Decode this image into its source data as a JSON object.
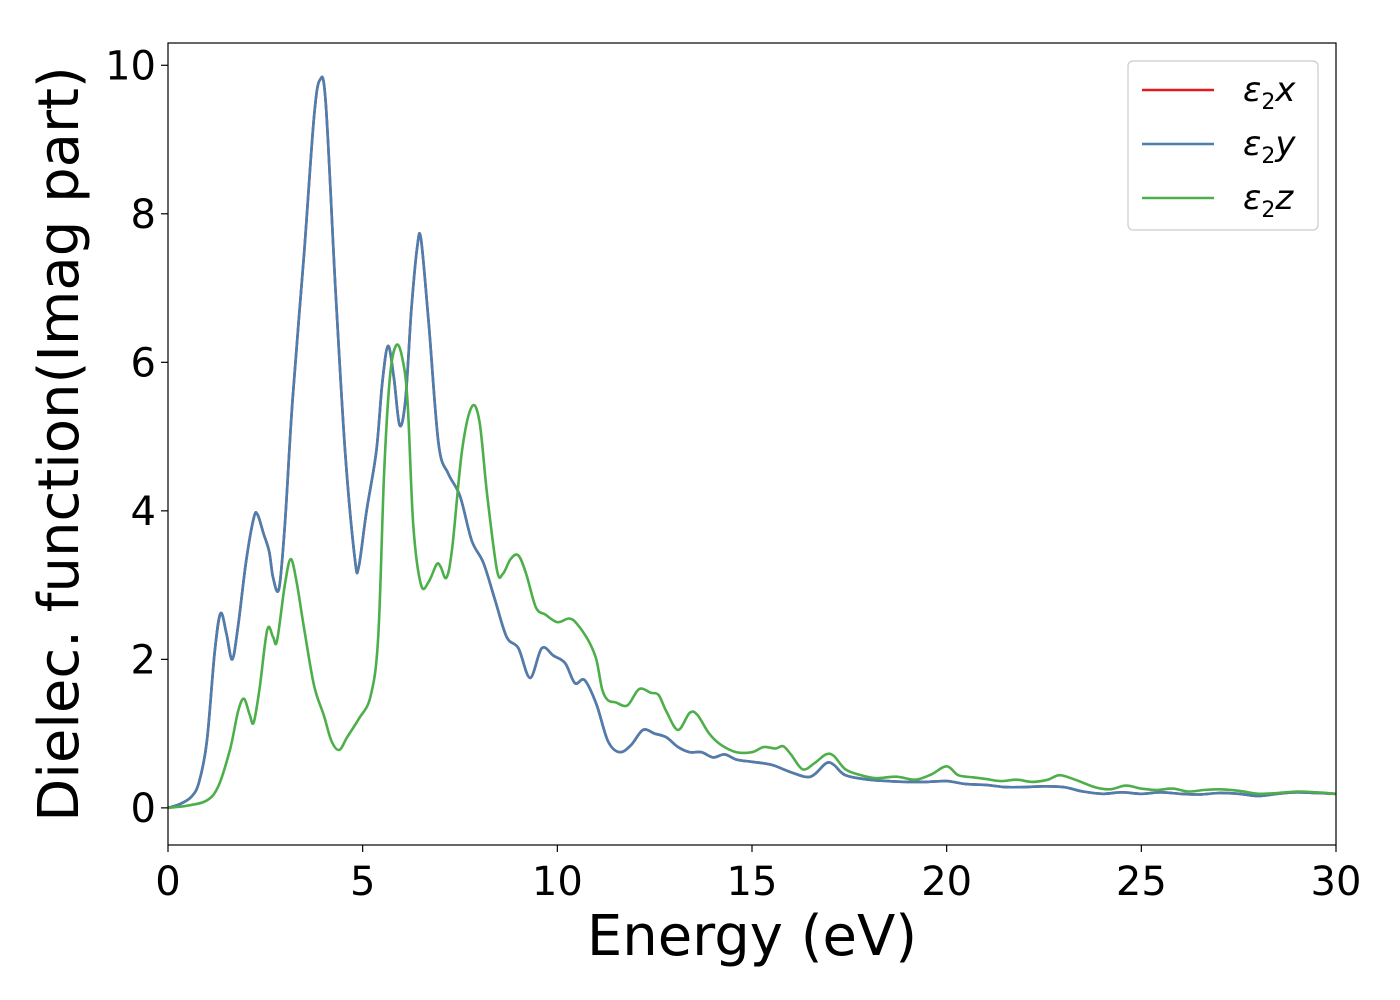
{
  "chart_data": {
    "type": "line",
    "title": "",
    "xlabel": "Energy (eV)",
    "ylabel": "Dielec. function(Imag part)",
    "xlim": [
      0,
      30
    ],
    "ylim": [
      -0.5,
      10.3
    ],
    "xticks": [
      0,
      5,
      10,
      15,
      20,
      25,
      30
    ],
    "yticks": [
      0,
      2,
      4,
      6,
      8,
      10
    ],
    "grid": false,
    "legend_position": "top-right",
    "series": [
      {
        "name": "ε2x",
        "legend_base": "ε",
        "legend_sub": "2",
        "legend_var": "x",
        "color": "#e41a1c",
        "points": [
          [
            0,
            0.0
          ],
          [
            0.3,
            0.05
          ],
          [
            0.6,
            0.15
          ],
          [
            0.8,
            0.35
          ],
          [
            1.0,
            0.9
          ],
          [
            1.2,
            2.1
          ],
          [
            1.35,
            2.62
          ],
          [
            1.5,
            2.35
          ],
          [
            1.65,
            2.0
          ],
          [
            1.8,
            2.45
          ],
          [
            2.0,
            3.3
          ],
          [
            2.2,
            3.9
          ],
          [
            2.3,
            3.95
          ],
          [
            2.45,
            3.7
          ],
          [
            2.6,
            3.45
          ],
          [
            2.7,
            3.1
          ],
          [
            2.85,
            2.95
          ],
          [
            3.0,
            3.8
          ],
          [
            3.2,
            5.5
          ],
          [
            3.5,
            7.5
          ],
          [
            3.75,
            9.3
          ],
          [
            3.9,
            9.8
          ],
          [
            4.05,
            9.5
          ],
          [
            4.3,
            7.0
          ],
          [
            4.55,
            4.8
          ],
          [
            4.8,
            3.35
          ],
          [
            4.9,
            3.25
          ],
          [
            5.1,
            4.0
          ],
          [
            5.35,
            4.8
          ],
          [
            5.5,
            5.7
          ],
          [
            5.65,
            6.22
          ],
          [
            5.8,
            5.8
          ],
          [
            5.95,
            5.15
          ],
          [
            6.1,
            5.5
          ],
          [
            6.25,
            6.7
          ],
          [
            6.4,
            7.55
          ],
          [
            6.5,
            7.65
          ],
          [
            6.7,
            6.5
          ],
          [
            6.95,
            4.9
          ],
          [
            7.2,
            4.5
          ],
          [
            7.5,
            4.2
          ],
          [
            7.8,
            3.6
          ],
          [
            8.1,
            3.3
          ],
          [
            8.4,
            2.8
          ],
          [
            8.7,
            2.3
          ],
          [
            9.0,
            2.15
          ],
          [
            9.3,
            1.75
          ],
          [
            9.6,
            2.15
          ],
          [
            9.9,
            2.05
          ],
          [
            10.2,
            1.95
          ],
          [
            10.45,
            1.68
          ],
          [
            10.7,
            1.72
          ],
          [
            11.0,
            1.4
          ],
          [
            11.3,
            0.9
          ],
          [
            11.6,
            0.75
          ],
          [
            11.9,
            0.85
          ],
          [
            12.2,
            1.05
          ],
          [
            12.5,
            1.0
          ],
          [
            12.8,
            0.95
          ],
          [
            13.1,
            0.82
          ],
          [
            13.4,
            0.75
          ],
          [
            13.7,
            0.75
          ],
          [
            14.0,
            0.68
          ],
          [
            14.3,
            0.72
          ],
          [
            14.6,
            0.65
          ],
          [
            15.0,
            0.62
          ],
          [
            15.5,
            0.58
          ],
          [
            16.0,
            0.48
          ],
          [
            16.5,
            0.42
          ],
          [
            16.9,
            0.6
          ],
          [
            17.1,
            0.58
          ],
          [
            17.4,
            0.44
          ],
          [
            18.0,
            0.38
          ],
          [
            18.5,
            0.36
          ],
          [
            19.0,
            0.35
          ],
          [
            19.5,
            0.35
          ],
          [
            20.0,
            0.36
          ],
          [
            20.5,
            0.32
          ],
          [
            21.0,
            0.31
          ],
          [
            21.5,
            0.28
          ],
          [
            22.0,
            0.28
          ],
          [
            22.5,
            0.29
          ],
          [
            23.0,
            0.28
          ],
          [
            23.5,
            0.22
          ],
          [
            24.0,
            0.19
          ],
          [
            24.5,
            0.21
          ],
          [
            25.0,
            0.19
          ],
          [
            25.5,
            0.21
          ],
          [
            26.0,
            0.19
          ],
          [
            26.5,
            0.18
          ],
          [
            27.0,
            0.2
          ],
          [
            27.5,
            0.19
          ],
          [
            28.0,
            0.16
          ],
          [
            28.5,
            0.19
          ],
          [
            29.0,
            0.21
          ],
          [
            29.5,
            0.2
          ],
          [
            30.0,
            0.19
          ]
        ]
      },
      {
        "name": "ε2y",
        "legend_base": "ε",
        "legend_sub": "2",
        "legend_var": "y",
        "color": "#4a7fb0",
        "points": [
          [
            0,
            0.0
          ],
          [
            0.3,
            0.05
          ],
          [
            0.6,
            0.15
          ],
          [
            0.8,
            0.35
          ],
          [
            1.0,
            0.9
          ],
          [
            1.2,
            2.1
          ],
          [
            1.35,
            2.62
          ],
          [
            1.5,
            2.35
          ],
          [
            1.65,
            2.0
          ],
          [
            1.8,
            2.45
          ],
          [
            2.0,
            3.3
          ],
          [
            2.2,
            3.9
          ],
          [
            2.3,
            3.95
          ],
          [
            2.45,
            3.7
          ],
          [
            2.6,
            3.45
          ],
          [
            2.7,
            3.1
          ],
          [
            2.85,
            2.95
          ],
          [
            3.0,
            3.8
          ],
          [
            3.2,
            5.5
          ],
          [
            3.5,
            7.5
          ],
          [
            3.75,
            9.3
          ],
          [
            3.9,
            9.8
          ],
          [
            4.05,
            9.5
          ],
          [
            4.3,
            7.0
          ],
          [
            4.55,
            4.8
          ],
          [
            4.8,
            3.35
          ],
          [
            4.9,
            3.25
          ],
          [
            5.1,
            4.0
          ],
          [
            5.35,
            4.8
          ],
          [
            5.5,
            5.7
          ],
          [
            5.65,
            6.22
          ],
          [
            5.8,
            5.8
          ],
          [
            5.95,
            5.15
          ],
          [
            6.1,
            5.5
          ],
          [
            6.25,
            6.7
          ],
          [
            6.4,
            7.55
          ],
          [
            6.5,
            7.65
          ],
          [
            6.7,
            6.5
          ],
          [
            6.95,
            4.9
          ],
          [
            7.2,
            4.5
          ],
          [
            7.5,
            4.2
          ],
          [
            7.8,
            3.6
          ],
          [
            8.1,
            3.3
          ],
          [
            8.4,
            2.8
          ],
          [
            8.7,
            2.3
          ],
          [
            9.0,
            2.15
          ],
          [
            9.3,
            1.75
          ],
          [
            9.6,
            2.15
          ],
          [
            9.9,
            2.05
          ],
          [
            10.2,
            1.95
          ],
          [
            10.45,
            1.68
          ],
          [
            10.7,
            1.72
          ],
          [
            11.0,
            1.4
          ],
          [
            11.3,
            0.9
          ],
          [
            11.6,
            0.75
          ],
          [
            11.9,
            0.85
          ],
          [
            12.2,
            1.05
          ],
          [
            12.5,
            1.0
          ],
          [
            12.8,
            0.95
          ],
          [
            13.1,
            0.82
          ],
          [
            13.4,
            0.75
          ],
          [
            13.7,
            0.75
          ],
          [
            14.0,
            0.68
          ],
          [
            14.3,
            0.72
          ],
          [
            14.6,
            0.65
          ],
          [
            15.0,
            0.62
          ],
          [
            15.5,
            0.58
          ],
          [
            16.0,
            0.48
          ],
          [
            16.5,
            0.42
          ],
          [
            16.9,
            0.6
          ],
          [
            17.1,
            0.58
          ],
          [
            17.4,
            0.44
          ],
          [
            18.0,
            0.38
          ],
          [
            18.5,
            0.36
          ],
          [
            19.0,
            0.35
          ],
          [
            19.5,
            0.35
          ],
          [
            20.0,
            0.36
          ],
          [
            20.5,
            0.32
          ],
          [
            21.0,
            0.31
          ],
          [
            21.5,
            0.28
          ],
          [
            22.0,
            0.28
          ],
          [
            22.5,
            0.29
          ],
          [
            23.0,
            0.28
          ],
          [
            23.5,
            0.22
          ],
          [
            24.0,
            0.19
          ],
          [
            24.5,
            0.21
          ],
          [
            25.0,
            0.19
          ],
          [
            25.5,
            0.21
          ],
          [
            26.0,
            0.19
          ],
          [
            26.5,
            0.18
          ],
          [
            27.0,
            0.2
          ],
          [
            27.5,
            0.19
          ],
          [
            28.0,
            0.16
          ],
          [
            28.5,
            0.19
          ],
          [
            29.0,
            0.21
          ],
          [
            29.5,
            0.2
          ],
          [
            30.0,
            0.19
          ]
        ]
      },
      {
        "name": "ε2z",
        "legend_base": "ε",
        "legend_sub": "2",
        "legend_var": "z",
        "color": "#4daf4a",
        "points": [
          [
            0,
            0.0
          ],
          [
            0.5,
            0.03
          ],
          [
            1.0,
            0.1
          ],
          [
            1.3,
            0.3
          ],
          [
            1.6,
            0.8
          ],
          [
            1.8,
            1.3
          ],
          [
            1.95,
            1.47
          ],
          [
            2.1,
            1.25
          ],
          [
            2.2,
            1.15
          ],
          [
            2.35,
            1.6
          ],
          [
            2.55,
            2.4
          ],
          [
            2.7,
            2.3
          ],
          [
            2.8,
            2.25
          ],
          [
            3.0,
            3.0
          ],
          [
            3.15,
            3.35
          ],
          [
            3.3,
            3.05
          ],
          [
            3.5,
            2.4
          ],
          [
            3.75,
            1.65
          ],
          [
            4.0,
            1.25
          ],
          [
            4.2,
            0.9
          ],
          [
            4.4,
            0.78
          ],
          [
            4.6,
            0.95
          ],
          [
            4.9,
            1.2
          ],
          [
            5.2,
            1.5
          ],
          [
            5.4,
            2.3
          ],
          [
            5.55,
            4.5
          ],
          [
            5.7,
            5.8
          ],
          [
            5.85,
            6.22
          ],
          [
            6.0,
            6.1
          ],
          [
            6.15,
            5.5
          ],
          [
            6.3,
            3.8
          ],
          [
            6.5,
            3.0
          ],
          [
            6.7,
            3.05
          ],
          [
            6.9,
            3.28
          ],
          [
            7.0,
            3.25
          ],
          [
            7.15,
            3.1
          ],
          [
            7.3,
            3.5
          ],
          [
            7.55,
            4.8
          ],
          [
            7.8,
            5.4
          ],
          [
            8.0,
            5.2
          ],
          [
            8.2,
            4.2
          ],
          [
            8.45,
            3.2
          ],
          [
            8.6,
            3.15
          ],
          [
            8.8,
            3.35
          ],
          [
            9.0,
            3.4
          ],
          [
            9.2,
            3.15
          ],
          [
            9.45,
            2.7
          ],
          [
            9.7,
            2.6
          ],
          [
            10.0,
            2.5
          ],
          [
            10.3,
            2.55
          ],
          [
            10.5,
            2.48
          ],
          [
            10.8,
            2.25
          ],
          [
            11.0,
            2.0
          ],
          [
            11.15,
            1.6
          ],
          [
            11.3,
            1.45
          ],
          [
            11.5,
            1.42
          ],
          [
            11.8,
            1.38
          ],
          [
            12.1,
            1.6
          ],
          [
            12.4,
            1.55
          ],
          [
            12.6,
            1.52
          ],
          [
            12.8,
            1.3
          ],
          [
            13.1,
            1.05
          ],
          [
            13.4,
            1.28
          ],
          [
            13.6,
            1.25
          ],
          [
            13.9,
            1.0
          ],
          [
            14.2,
            0.85
          ],
          [
            14.6,
            0.75
          ],
          [
            15.0,
            0.75
          ],
          [
            15.3,
            0.82
          ],
          [
            15.6,
            0.8
          ],
          [
            15.8,
            0.83
          ],
          [
            16.0,
            0.72
          ],
          [
            16.3,
            0.52
          ],
          [
            16.6,
            0.6
          ],
          [
            16.9,
            0.72
          ],
          [
            17.1,
            0.7
          ],
          [
            17.4,
            0.52
          ],
          [
            17.8,
            0.44
          ],
          [
            18.2,
            0.4
          ],
          [
            18.7,
            0.42
          ],
          [
            19.2,
            0.38
          ],
          [
            19.6,
            0.45
          ],
          [
            20.0,
            0.56
          ],
          [
            20.3,
            0.44
          ],
          [
            20.7,
            0.41
          ],
          [
            21.0,
            0.39
          ],
          [
            21.4,
            0.36
          ],
          [
            21.8,
            0.38
          ],
          [
            22.2,
            0.35
          ],
          [
            22.6,
            0.38
          ],
          [
            22.9,
            0.44
          ],
          [
            23.3,
            0.38
          ],
          [
            23.8,
            0.28
          ],
          [
            24.2,
            0.25
          ],
          [
            24.6,
            0.3
          ],
          [
            25.0,
            0.26
          ],
          [
            25.4,
            0.24
          ],
          [
            25.8,
            0.26
          ],
          [
            26.2,
            0.22
          ],
          [
            26.6,
            0.24
          ],
          [
            27.0,
            0.25
          ],
          [
            27.5,
            0.23
          ],
          [
            28.0,
            0.19
          ],
          [
            28.5,
            0.2
          ],
          [
            29.0,
            0.22
          ],
          [
            29.5,
            0.21
          ],
          [
            30.0,
            0.19
          ]
        ]
      }
    ]
  }
}
